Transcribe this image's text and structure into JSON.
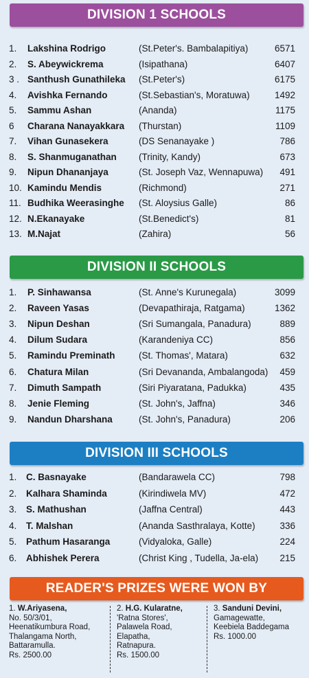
{
  "colors": {
    "background": "#e4ecf6",
    "division1": "#9c4f9d",
    "division2": "#2a9a47",
    "division3": "#1d7fc3",
    "readers": "#e75a1e"
  },
  "division1": {
    "title": "DIVISION 1 SCHOOLS",
    "rows": [
      {
        "num": "1.",
        "name": "Lakshina Rodrigo",
        "school": "(St.Peter's. Bambalapitiya)",
        "score": "6571"
      },
      {
        "num": "2.",
        "name": "S. Abeywickrema",
        "school": "(Isipathana)",
        "score": "6407"
      },
      {
        "num": "3 .",
        "name": "Santhush Gunathileka",
        "school": "(St.Peter's)",
        "score": "6175"
      },
      {
        "num": "4.",
        "name": "Avishka  Fernando",
        "school": "(St.Sebastian's, Moratuwa)",
        "score": "1492"
      },
      {
        "num": "5.",
        "name": "Sammu  Ashan",
        "school": "(Ananda)",
        "score": "1175"
      },
      {
        "num": "6",
        "name": "Charana Nanayakkara",
        "school": "(Thurstan)",
        "score": "1109"
      },
      {
        "num": "7.",
        "name": "Vihan Gunasekera",
        "school": "(DS Senanayake )",
        "score": "786"
      },
      {
        "num": "8.",
        "name": "S. Shanmuganathan",
        "school": "(Trinity,  Kandy)",
        "score": "673"
      },
      {
        "num": "9.",
        "name": "Nipun  Dhananjaya",
        "school": "(St. Joseph  Vaz, Wennapuwa)",
        "score": "491"
      },
      {
        "num": "10.",
        "name": "Kamindu  Mendis",
        "school": "(Richmond)",
        "score": "271"
      },
      {
        "num": "11.",
        "name": "Budhika  Weerasinghe",
        "school": "(St. Aloysius  Galle)",
        "score": "86"
      },
      {
        "num": "12.",
        "name": "N.Ekanayake",
        "school": "(St.Benedict's)",
        "score": "81"
      },
      {
        "num": "13.",
        "name": "M.Najat",
        "school": "(Zahira)",
        "score": "56"
      }
    ]
  },
  "division2": {
    "title": "DIVISION  II SCHOOLS",
    "rows": [
      {
        "num": "1.",
        "name": "P.  Sinhawansa",
        "school": "(St. Anne's Kurunegala)",
        "score": "3099"
      },
      {
        "num": "2.",
        "name": "Raveen  Yasas",
        "school": "(Devapathiraja, Ratgama)",
        "score": "1362"
      },
      {
        "num": "3.",
        "name": "Nipun  Deshan",
        "school": "(Sri  Sumangala, Panadura)",
        "score": "889"
      },
      {
        "num": "4.",
        "name": "Dilum Sudara",
        "school": "(Karandeniya CC)",
        "score": "856"
      },
      {
        "num": "5.",
        "name": "Ramindu  Preminath",
        "school": "(St. Thomas', Matara)",
        "score": "632"
      },
      {
        "num": "6.",
        "name": "Chatura  Milan",
        "school": "(Sri  Devananda, Ambalangoda)",
        "score": "459"
      },
      {
        "num": "7.",
        "name": "Dimuth  Sampath",
        "school": "(Siri  Piyaratana, Padukka)",
        "score": "435"
      },
      {
        "num": "8.",
        "name": "Jenie  Fleming",
        "school": "(St. John's, Jaffna)",
        "score": "346"
      },
      {
        "num": "9.",
        "name": "Nandun  Dharshana",
        "school": "(St. John's, Panadura)",
        "score": "206"
      }
    ]
  },
  "division3": {
    "title": "DIVISION  III SCHOOLS",
    "rows": [
      {
        "num": "1.",
        "name": "C.  Basnayake",
        "school": "(Bandarawela CC)",
        "score": "798"
      },
      {
        "num": "2.",
        "name": "Kalhara  Shaminda",
        "school": "(Kirindiwela  MV)",
        "score": "472"
      },
      {
        "num": "3.",
        "name": "S. Mathushan",
        "school": "(Jaffna  Central)",
        "score": "443"
      },
      {
        "num": "4.",
        "name": "T.  Malshan",
        "school": "(Ananda  Sasthralaya,  Kotte)",
        "score": "336"
      },
      {
        "num": "5.",
        "name": "Pathum  Hasaranga",
        "school": "(Vidyaloka,  Galle)",
        "score": "224"
      },
      {
        "num": "6.",
        "name": "Abhishek  Perera",
        "school": "(Christ  King ,  Tudella,  Ja-ela)",
        "score": "215"
      }
    ]
  },
  "readers": {
    "title": "READER'S PRIZES WERE WON BY",
    "winners": [
      {
        "num": "1.",
        "name": "W.Ariyasena,",
        "lines": [
          "No. 50/3/01,",
          "Heenatikumbura Road,",
          "Thalangama North,",
          "Battaramulla.",
          "Rs. 2500.00"
        ]
      },
      {
        "num": "2.",
        "name": "H.G. Kularatne,",
        "lines": [
          "'Ratna Stores',",
          "Palawela Road,",
          "Elapatha,",
          "Ratnapura.",
          " Rs. 1500.00"
        ]
      },
      {
        "num": "3.",
        "name": "Sanduni Devini,",
        "lines": [
          "Gamagewatte,",
          "Keebiela Baddegama",
          "Rs. 1000.00"
        ]
      }
    ]
  }
}
